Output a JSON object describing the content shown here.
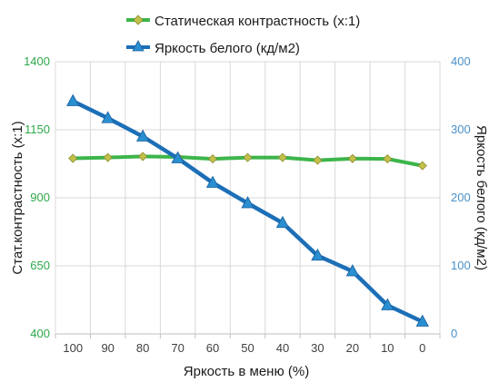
{
  "chart_data": {
    "type": "line",
    "legend": {
      "placement": "top",
      "items": [
        {
          "label": "Статическая контрастность  (x:1)",
          "marker": "diamond",
          "color": "#3cb54a",
          "marker_color": "#c3c04a"
        },
        {
          "label": "Яркость белого (кд/м2)",
          "marker": "triangle",
          "color": "#1c6fb7",
          "marker_color": "#2a8fd0"
        }
      ]
    },
    "xlabel": "Яркость в меню (%)",
    "categories": [
      "100",
      "90",
      "80",
      "70",
      "60",
      "50",
      "40",
      "30",
      "20",
      "10",
      "0"
    ],
    "y_left": {
      "label": "Стат.контрастность  (x:1)",
      "ticks": [
        "400",
        "650",
        "900",
        "1150",
        "1400"
      ],
      "range": [
        400,
        1400
      ],
      "tick_color": "#2ea84a"
    },
    "y_right": {
      "label": "Яркость белого (кд/м2)",
      "ticks": [
        "0",
        "100",
        "200",
        "300",
        "400"
      ],
      "range": [
        0,
        400
      ],
      "tick_color": "#4a90c8"
    },
    "grid": true,
    "series": [
      {
        "name": "Статическая контрастность  (x:1)",
        "axis": "left",
        "color": "#3cb54a",
        "marker_color": "#c3c04a",
        "values": [
          1045,
          1048,
          1052,
          1050,
          1043,
          1048,
          1048,
          1038,
          1044,
          1043,
          1018
        ]
      },
      {
        "name": "Яркость белого (кд/м2)",
        "axis": "right",
        "color": "#1c6fb7",
        "marker_color": "#2a8fd0",
        "values": [
          342,
          317,
          290,
          258,
          222,
          192,
          163,
          115,
          92,
          42,
          18
        ]
      }
    ]
  }
}
